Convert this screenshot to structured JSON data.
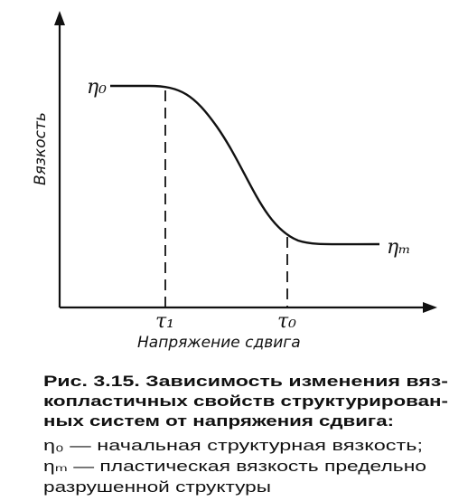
{
  "figure": {
    "y_axis_label": "Вязкость",
    "x_axis_label": "Напряжение сдвига",
    "curve_labels": {
      "start": "η₀",
      "end": "ηₘ"
    },
    "x_marks": [
      "τ₁",
      "τ₀"
    ]
  },
  "caption": {
    "lines": [
      "Рис. 3.15. Зависимость изменения вяз-",
      "копластичных свойств структурирован-",
      "ных систем от напряжения сдвига:"
    ],
    "legend": [
      "η₀ — начальная структурная вязкость;",
      "ηₘ — пластическая вязкость предельно",
      "разрушенной структуры"
    ]
  }
}
